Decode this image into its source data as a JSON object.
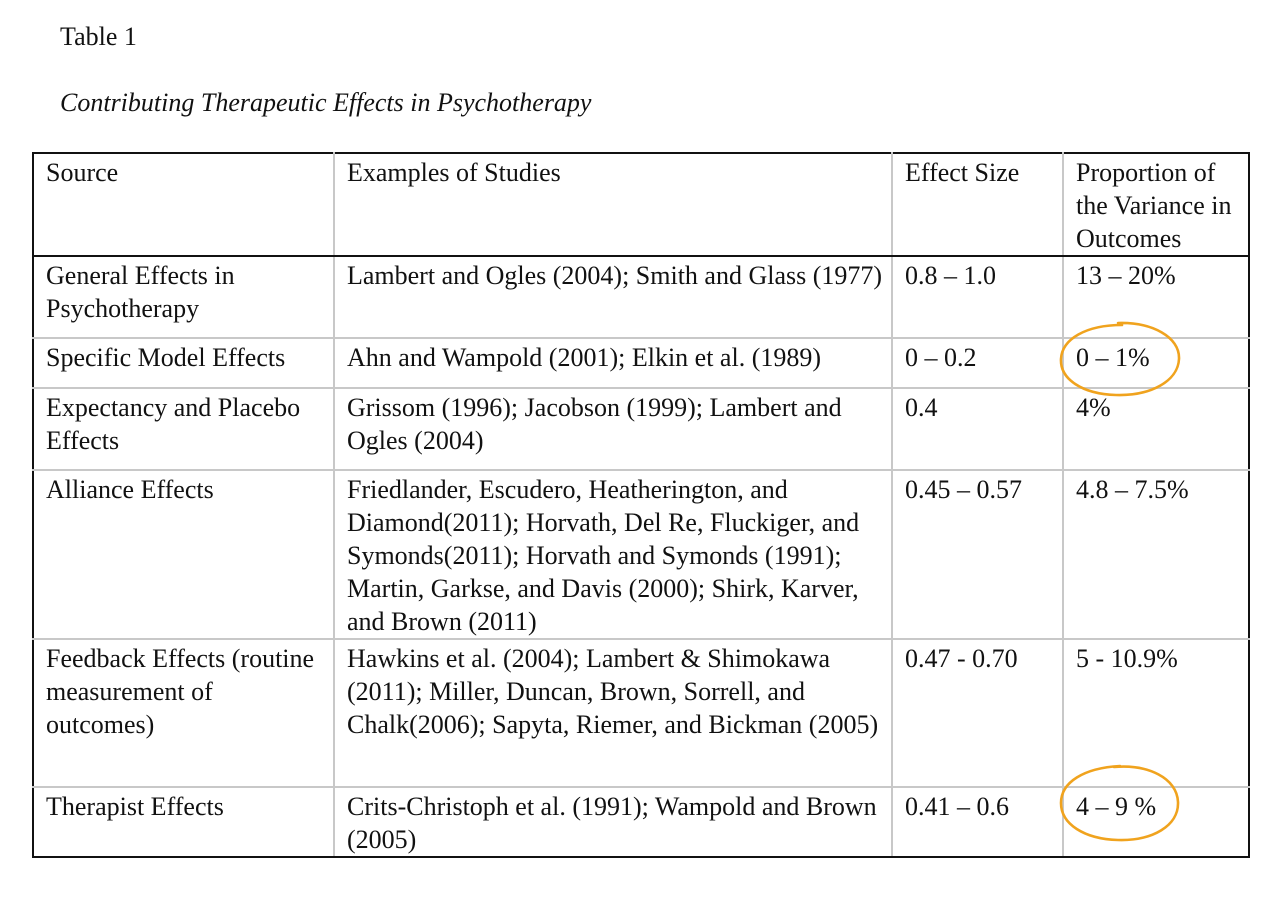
{
  "document": {
    "table_number": "Table 1",
    "table_title": "Contributing Therapeutic Effects in Psychotherapy",
    "headers": [
      "Source",
      "Examples of Studies",
      "Effect Size",
      "Proportion of the Variance in Outcomes"
    ],
    "rows": [
      {
        "source": "General Effects in Psychotherapy",
        "examples": "Lambert and Ogles (2004); Smith and Glass (1977)",
        "effect_size": "0.8 – 1.0",
        "proportion": "13 – 20%"
      },
      {
        "source": "Specific Model Effects",
        "examples": "Ahn and Wampold (2001); Elkin et al. (1989)",
        "effect_size": "0 – 0.2",
        "proportion": "0 – 1%"
      },
      {
        "source": "Expectancy and Placebo Effects",
        "examples": "Grissom (1996); Jacobson (1999); Lambert and Ogles (2004)",
        "effect_size": "0.4",
        "proportion": "4%"
      },
      {
        "source": "Alliance Effects",
        "examples": "Friedlander, Escudero, Heatherington, and Diamond(2011); Horvath, Del Re, Fluckiger, and Symonds(2011); Horvath and Symonds (1991); Martin, Garkse, and Davis (2000); Shirk, Karver, and Brown (2011)",
        "effect_size": "0.45 – 0.57",
        "proportion": "4.8 – 7.5%"
      },
      {
        "source": "Feedback Effects (routine measurement of outcomes)",
        "examples": "Hawkins et al. (2004); Lambert & Shimokawa (2011); Miller, Duncan, Brown, Sorrell, and Chalk(2006); Sapyta, Riemer, and Bickman (2005)",
        "effect_size": "0.47 - 0.70",
        "proportion": "5 - 10.9%"
      },
      {
        "source": "Therapist Effects",
        "examples": "Crits-Christoph et al. (1991); Wampold and Brown (2005)",
        "effect_size": "0.41 – 0.6",
        "proportion": "4 – 9 %"
      }
    ]
  },
  "annotations": {
    "circle_color": "#f0a31e"
  }
}
